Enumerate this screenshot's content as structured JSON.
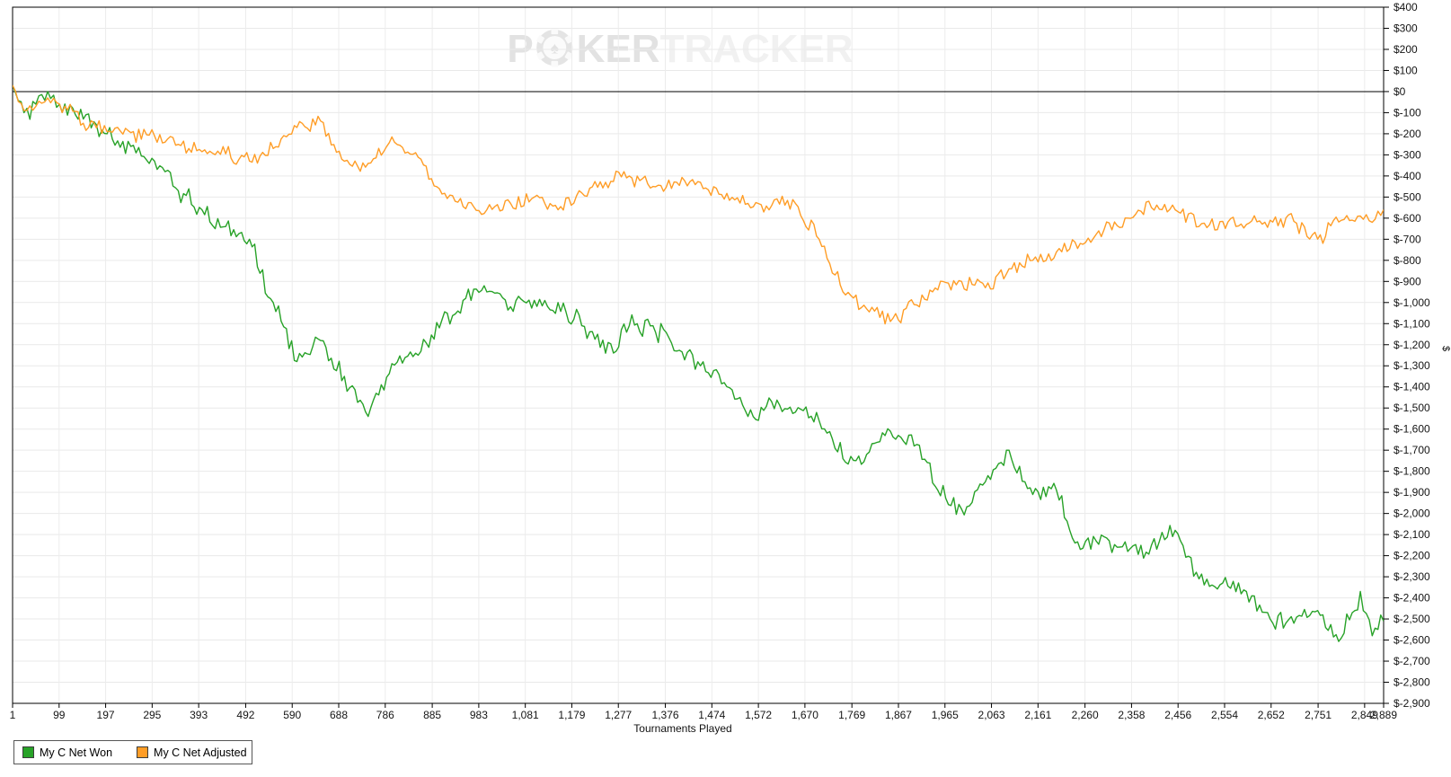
{
  "watermark": {
    "prefix": "P",
    "middle": "KER",
    "suffix": "TRACKER"
  },
  "axis": {
    "x_label": "Tournaments Played",
    "y_label": "$"
  },
  "legend": {
    "items": [
      {
        "label": "My C Net Won",
        "color": "#28a228"
      },
      {
        "label": "My C Net Adjusted",
        "color": "#ff9d26"
      }
    ]
  },
  "chart_data": {
    "type": "line",
    "title": "",
    "xlabel": "Tournaments Played",
    "ylabel": "$",
    "grid": true,
    "legend_position": "bottom-left",
    "xlim": [
      1,
      2889
    ],
    "ylim": [
      -2900,
      400
    ],
    "y_tick_step": 100,
    "y_ticks": [
      400,
      300,
      200,
      100,
      0,
      -100,
      -200,
      -300,
      -400,
      -500,
      -600,
      -700,
      -800,
      -900,
      -1000,
      -1100,
      -1200,
      -1300,
      -1400,
      -1500,
      -1600,
      -1700,
      -1800,
      -1900,
      -2000,
      -2100,
      -2200,
      -2300,
      -2400,
      -2500,
      -2600,
      -2700,
      -2800,
      -2900
    ],
    "x_ticks": [
      1,
      99,
      197,
      295,
      393,
      492,
      590,
      688,
      786,
      885,
      983,
      1081,
      1179,
      1277,
      1376,
      1474,
      1572,
      1670,
      1769,
      1867,
      1965,
      2063,
      2161,
      2260,
      2358,
      2456,
      2554,
      2652,
      2751,
      2849,
      2889
    ],
    "x": [
      1,
      25,
      50,
      75,
      100,
      150,
      200,
      250,
      300,
      350,
      400,
      450,
      500,
      550,
      600,
      650,
      700,
      750,
      800,
      850,
      900,
      950,
      1000,
      1050,
      1100,
      1150,
      1200,
      1250,
      1300,
      1350,
      1400,
      1450,
      1500,
      1550,
      1600,
      1650,
      1700,
      1750,
      1800,
      1850,
      1900,
      1950,
      2000,
      2050,
      2100,
      2150,
      2200,
      2250,
      2300,
      2350,
      2400,
      2450,
      2500,
      2550,
      2600,
      2650,
      2700,
      2750,
      2800,
      2840,
      2865,
      2889
    ],
    "series": [
      {
        "name": "My C Net Won",
        "color": "#28a228",
        "values": [
          30,
          -100,
          -60,
          0,
          -60,
          -130,
          -200,
          -260,
          -330,
          -470,
          -560,
          -640,
          -700,
          -1000,
          -1280,
          -1180,
          -1350,
          -1540,
          -1290,
          -1240,
          -1120,
          -990,
          -950,
          -1020,
          -990,
          -1000,
          -1110,
          -1240,
          -1110,
          -1110,
          -1230,
          -1300,
          -1380,
          -1540,
          -1470,
          -1520,
          -1560,
          -1740,
          -1720,
          -1610,
          -1680,
          -1890,
          -1980,
          -1850,
          -1700,
          -1910,
          -1890,
          -2170,
          -2110,
          -2180,
          -2150,
          -2080,
          -2310,
          -2330,
          -2370,
          -2500,
          -2520,
          -2460,
          -2590,
          -2370,
          -2580,
          -2510
        ]
      },
      {
        "name": "My C Net Adjusted",
        "color": "#ff9d26",
        "values": [
          30,
          -90,
          -70,
          -30,
          -60,
          -150,
          -190,
          -195,
          -210,
          -250,
          -285,
          -295,
          -330,
          -270,
          -170,
          -140,
          -330,
          -340,
          -215,
          -290,
          -460,
          -545,
          -560,
          -530,
          -500,
          -560,
          -480,
          -430,
          -400,
          -450,
          -430,
          -430,
          -510,
          -530,
          -540,
          -530,
          -700,
          -950,
          -1030,
          -1090,
          -1010,
          -940,
          -900,
          -930,
          -840,
          -800,
          -760,
          -720,
          -655,
          -600,
          -550,
          -560,
          -640,
          -615,
          -630,
          -610,
          -615,
          -700,
          -610,
          -590,
          -620,
          -560
        ]
      }
    ]
  }
}
